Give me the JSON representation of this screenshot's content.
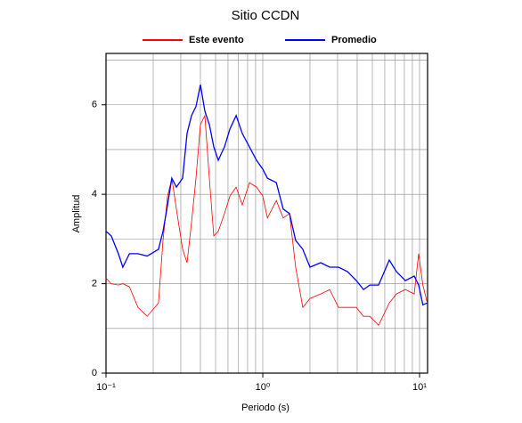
{
  "chart_data": {
    "type": "line",
    "title": "Sitio CCDN",
    "xlabel": "Periodo (s)",
    "ylabel": "Amplitud",
    "xscale": "log",
    "grid": true,
    "legend": "top",
    "x": [
      0.1,
      0.108,
      0.12,
      0.128,
      0.141,
      0.16,
      0.183,
      0.216,
      0.231,
      0.247,
      0.263,
      0.281,
      0.308,
      0.329,
      0.351,
      0.375,
      0.4,
      0.427,
      0.456,
      0.487,
      0.52,
      0.57,
      0.617,
      0.676,
      0.74,
      0.822,
      0.912,
      1.0,
      1.07,
      1.22,
      1.35,
      1.48,
      1.62,
      1.8,
      2.0,
      2.34,
      2.67,
      3.04,
      3.47,
      3.95,
      4.39,
      4.81,
      5.48,
      6.41,
      7.12,
      8.11,
      9.25,
      9.87,
      10.5,
      11.2
    ],
    "series": [
      {
        "name": "Este evento",
        "color": "#ff0000",
        "values": [
          2.13,
          2.0,
          1.97,
          2.0,
          1.93,
          1.47,
          1.27,
          1.57,
          2.97,
          3.96,
          4.36,
          3.67,
          2.77,
          2.47,
          3.37,
          4.36,
          5.56,
          5.76,
          4.36,
          3.07,
          3.17,
          3.57,
          3.96,
          4.16,
          3.76,
          4.26,
          4.16,
          3.96,
          3.47,
          3.86,
          3.47,
          3.57,
          2.37,
          1.47,
          1.67,
          1.77,
          1.87,
          1.47,
          1.47,
          1.47,
          1.27,
          1.27,
          1.07,
          1.57,
          1.77,
          1.87,
          1.77,
          2.67,
          1.97,
          1.57
        ]
      },
      {
        "name": "Promedio",
        "color": "#0000ff",
        "values": [
          3.17,
          3.07,
          2.67,
          2.37,
          2.67,
          2.67,
          2.62,
          2.77,
          3.17,
          3.76,
          4.36,
          4.16,
          4.36,
          5.36,
          5.76,
          5.96,
          6.45,
          5.86,
          5.56,
          5.06,
          4.76,
          5.06,
          5.46,
          5.76,
          5.36,
          5.06,
          4.76,
          4.56,
          4.36,
          4.26,
          3.67,
          3.57,
          2.97,
          2.77,
          2.37,
          2.47,
          2.37,
          2.37,
          2.27,
          2.07,
          1.87,
          1.97,
          1.97,
          2.53,
          2.27,
          2.07,
          2.17,
          1.97,
          1.53,
          1.57
        ]
      }
    ],
    "xlim": [
      0.1,
      11.25
    ],
    "xticks": [
      {
        "value": 0.1,
        "label": "10⁻¹"
      },
      {
        "value": 1,
        "label": "10⁰"
      },
      {
        "value": 10,
        "label": "10¹"
      }
    ],
    "xminor": [
      0.2,
      0.3,
      0.4,
      0.5,
      0.6,
      0.7,
      0.8,
      0.9,
      2,
      3,
      4,
      5,
      6,
      7,
      8,
      9
    ],
    "ylim": [
      0,
      7.15
    ],
    "yticks": [
      0,
      2,
      4,
      6
    ],
    "yminor": [
      1,
      3,
      5,
      7
    ]
  }
}
